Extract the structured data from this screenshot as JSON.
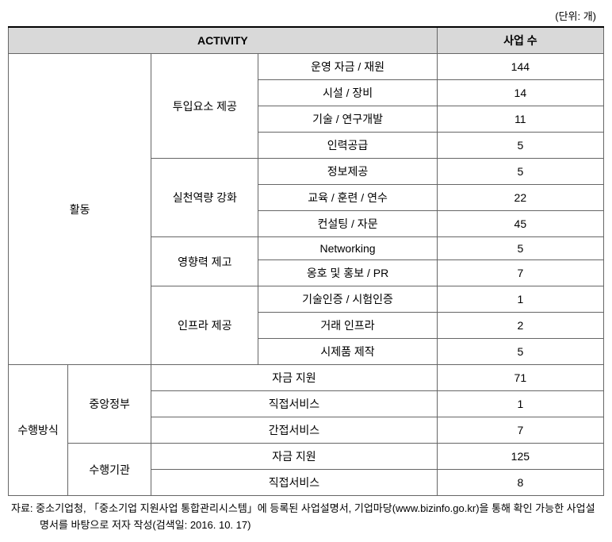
{
  "unit": "(단위: 개)",
  "header": {
    "activity": "ACTIVITY",
    "count": "사업 수"
  },
  "section1": {
    "label": "활동",
    "groups": [
      {
        "label": "투입요소 제공",
        "rows": [
          {
            "item": "운영 자금 / 재원",
            "value": "144"
          },
          {
            "item": "시설 / 장비",
            "value": "14"
          },
          {
            "item": "기술 / 연구개발",
            "value": "11"
          },
          {
            "item": "인력공급",
            "value": "5"
          }
        ]
      },
      {
        "label": "실천역량 강화",
        "rows": [
          {
            "item": "정보제공",
            "value": "5"
          },
          {
            "item": "교육 / 훈련 / 연수",
            "value": "22"
          },
          {
            "item": "컨설팅 / 자문",
            "value": "45"
          }
        ]
      },
      {
        "label": "영향력 제고",
        "rows": [
          {
            "item": "Networking",
            "value": "5"
          },
          {
            "item": "옹호 및 홍보 / PR",
            "value": "7"
          }
        ]
      },
      {
        "label": "인프라 제공",
        "rows": [
          {
            "item": "기술인증 / 시험인증",
            "value": "1"
          },
          {
            "item": "거래 인프라",
            "value": "2"
          },
          {
            "item": "시제품 제작",
            "value": "5"
          }
        ]
      }
    ]
  },
  "section2": {
    "label": "수행방식",
    "groups": [
      {
        "label": "중앙정부",
        "rows": [
          {
            "item": "자금 지원",
            "value": "71"
          },
          {
            "item": "직접서비스",
            "value": "1"
          },
          {
            "item": "간접서비스",
            "value": "7"
          }
        ]
      },
      {
        "label": "수행기관",
        "rows": [
          {
            "item": "자금 지원",
            "value": "125"
          },
          {
            "item": "직접서비스",
            "value": "8"
          }
        ]
      }
    ]
  },
  "footer": "자료: 중소기업청, 「중소기업 지원사업 통합관리시스템」에 등록된 사업설명서, 기업마당(www.bizinfo.go.kr)을 통해 확인 가능한 사업설명서를 바탕으로 저자 작성(검색일: 2016. 10. 17)"
}
